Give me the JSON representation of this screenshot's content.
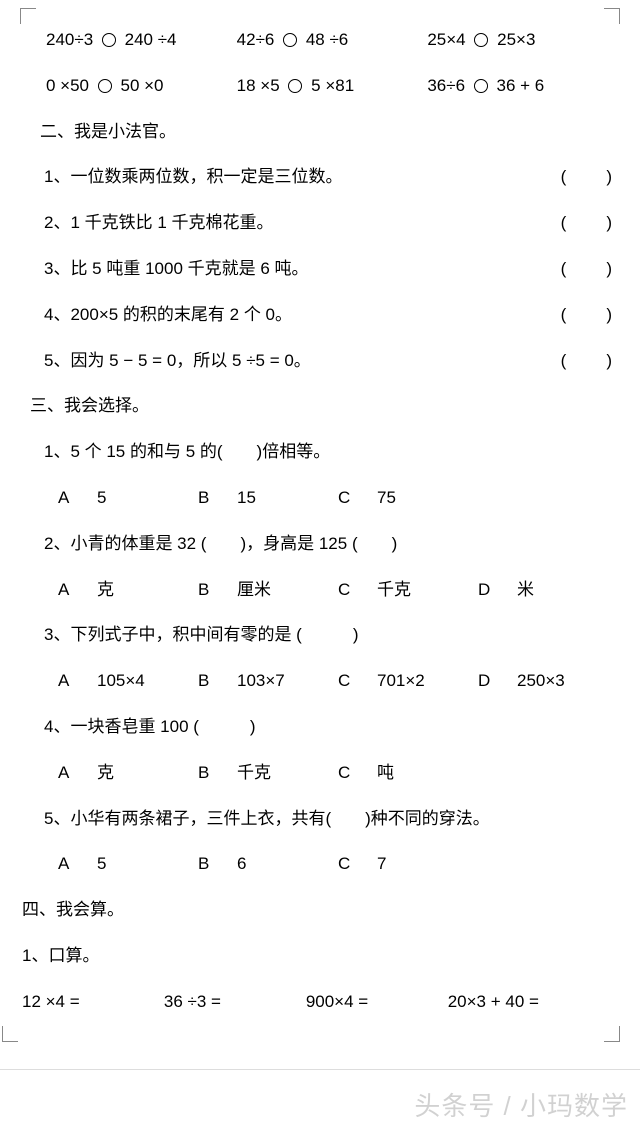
{
  "compare_rows": [
    [
      {
        "l": "240÷3",
        "r": "240 ÷4"
      },
      {
        "l": "42÷6",
        "r": "48 ÷6"
      },
      {
        "l": "25×4",
        "r": "25×3"
      }
    ],
    [
      {
        "l": "0 ×50",
        "r": "50 ×0"
      },
      {
        "l": "18 ×5",
        "r": "5 ×81"
      },
      {
        "l": "36÷6",
        "r": "36 + 6"
      }
    ]
  ],
  "section2": {
    "title": "二、我是小法官。",
    "items": [
      "1、一位数乘两位数，积一定是三位数。",
      "2、1 千克铁比 1 千克棉花重。",
      "3、比 5 吨重 1000 千克就是 6 吨。",
      "4、200×5 的积的末尾有 2 个 0。",
      "5、因为 5 − 5 = 0，所以 5 ÷5 = 0。"
    ],
    "paren": "(　　)"
  },
  "section3": {
    "title": "三、我会选择。",
    "q1": {
      "text": "1、5 个 15 的和与 5 的(　　)倍相等。",
      "opts": [
        [
          "A",
          "5"
        ],
        [
          "B",
          "15"
        ],
        [
          "C",
          "75"
        ]
      ]
    },
    "q2": {
      "text": "2、小青的体重是 32 (　　)，身高是 125 (　　)",
      "opts": [
        [
          "A",
          "克"
        ],
        [
          "B",
          "厘米"
        ],
        [
          "C",
          "千克"
        ],
        [
          "D",
          "米"
        ]
      ]
    },
    "q3": {
      "text": "3、下列式子中，积中间有零的是 (　　　)",
      "opts": [
        [
          "A",
          "105×4"
        ],
        [
          "B",
          "103×7"
        ],
        [
          "C",
          "701×2"
        ],
        [
          "D",
          "250×3"
        ]
      ]
    },
    "q4": {
      "text": "4、一块香皂重 100 (　　　)",
      "opts": [
        [
          "A",
          "克"
        ],
        [
          "B",
          "千克"
        ],
        [
          "C",
          "吨"
        ]
      ]
    },
    "q5": {
      "text": "5、小华有两条裙子，三件上衣，共有(　　)种不同的穿法。",
      "opts": [
        [
          "A",
          "5"
        ],
        [
          "B",
          "6"
        ],
        [
          "C",
          "7"
        ]
      ]
    }
  },
  "section4": {
    "title": "四、我会算。",
    "sub1": "1、口算。",
    "items": [
      "12 ×4 =",
      "36 ÷3 =",
      "900×4 =",
      "20×3 + 40 ="
    ]
  },
  "watermark": "头条号 / 小玛数学"
}
